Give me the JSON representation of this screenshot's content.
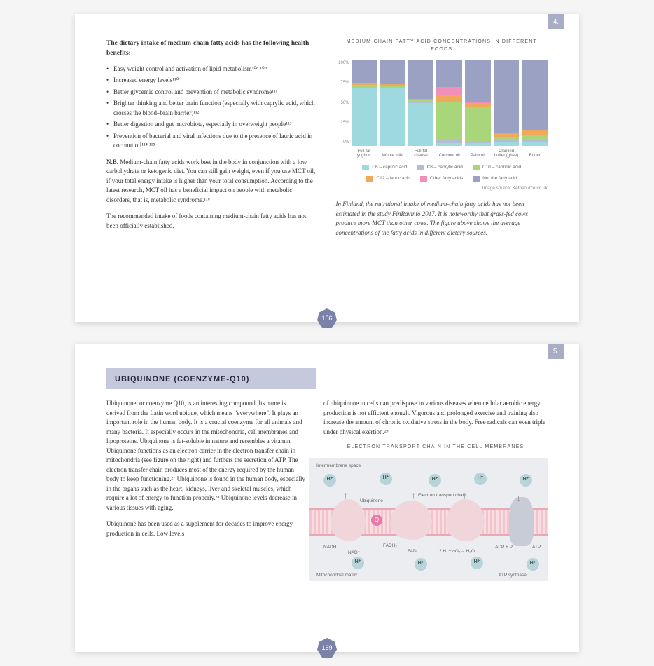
{
  "page1": {
    "tab": "4.",
    "pageNum": "156",
    "intro": "The dietary intake of medium-chain fatty acids has the following health benefits:",
    "bullets": [
      "Easy weight control and activation of lipid metabolism¹⁰⁸ ¹⁰⁹",
      "Increased energy levels¹¹⁰",
      "Better glycemic control and prevention of metabolic syndrome¹¹¹",
      "Brighter thinking and better brain function (especially with caprylic acid, which crosses the blood–brain barrier)¹¹²",
      "Better digestion and gut microbiota, especially in overweight people¹¹³",
      "Prevention of bacterial and viral infections due to the presence of lauric acid in coconut oil¹¹⁴ ¹¹⁵"
    ],
    "nbLabel": "N.B.",
    "nb": " Medium-chain fatty acids work best in the body in conjunction with a low carbohydrate or ketogenic diet. You can still gain weight, even if you use MCT oil, if your total energy intake is higher than your total consumption. According to the latest research, MCT oil has a beneficial impact on people with metabolic disorders, that is, metabolic syndrome.¹¹⁶",
    "rec": "The recommended intake of foods containing medium-chain fatty acids has not been officially established.",
    "chartTitle": "MEDIUM-CHAIN FATTY ACID CONCENTRATIONS IN DIFFERENT FOODS",
    "yTicks": [
      "100%",
      "75%",
      "50%",
      "25%",
      "0%"
    ],
    "categories": [
      "Full-fat yoghurt",
      "Whole milk",
      "Full-fat cheese",
      "Coconut oil",
      "Palm oil",
      "Clarified butter (ghee)",
      "Butter"
    ],
    "series": {
      "c6": {
        "label": "C6 – caproic acid",
        "color": "#9fd9e0",
        "values": [
          68,
          67,
          50,
          3,
          3,
          4,
          4
        ]
      },
      "c8": {
        "label": "C8 – caprylic acid",
        "color": "#b4bcd6",
        "values": [
          1,
          1,
          1,
          5,
          3,
          3,
          3
        ]
      },
      "c10": {
        "label": "C10 – caprinic acid",
        "color": "#a9d67a",
        "values": [
          2,
          2,
          2,
          43,
          40,
          4,
          5
        ]
      },
      "c12": {
        "label": "C12 – lauric acid",
        "color": "#f0a85a",
        "values": [
          2,
          2,
          2,
          8,
          4,
          4,
          6
        ]
      },
      "other": {
        "label": "Other fatty acids",
        "color": "#f08fb8",
        "values": [
          0,
          0,
          0,
          10,
          2,
          0,
          0
        ]
      },
      "not": {
        "label": "Not the fatty acid",
        "color": "#9aa1c2",
        "values": [
          27,
          28,
          45,
          31,
          48,
          85,
          82
        ]
      }
    },
    "seriesOrder": [
      "c6",
      "c8",
      "c10",
      "c12",
      "other",
      "not"
    ],
    "legendOrder": [
      "c6",
      "c8",
      "c10",
      "c12",
      "other",
      "not"
    ],
    "imgSource": "Image source: Ketosource.co.uk",
    "italicNote": "In Finland, the nutritional intake of medium-chain fatty acids has not been estimated in the study FinRavinto 2017. It is noteworthy that grass-fed cows produce more MCT than other cows. The figure above shows the average concentrations of the fatty acids in different dietary sources."
  },
  "page2": {
    "tab": "5.",
    "pageNum": "169",
    "headingBar": "UBIQUINONE (COENZYME-Q10)",
    "leftPara1": "Ubiquinone, or coenzyme Q10, is an interesting compound. Its name is derived from the Latin word ubique, which means \"everywhere\". It plays an important role in the human body. It is a crucial coenzyme for all animals and many bacteria. It especially occurs in the mitochondria, cell membranes and lipoproteins. Ubiquinone is fat-soluble in nature and resembles a vitamin. Ubiquinone functions as an electron carrier in the electron transfer chain in mitochondria (see figure on the right) and furthers the secretion of ATP. The electron transfer chain produces most of the energy required by the human body to keep functioning.²⁷ Ubiquinone is found in the human body, especially in the organs such as the heart, kidneys, liver and skeletal muscles, which require a lot of energy to function properly.²⁸ Ubiquinone levels decrease in various tissues with aging.",
    "leftPara2": "Ubiquinone has been used as a supplement for decades to improve energy production in cells. Low levels",
    "rightPara": "of ubiquinone in cells can predispose to various diseases when cellular aerobic energy production is not efficient enough. Vigorous and prolonged exercise and training also increase the amount of chronic oxidative stress in the body. Free radicals can even triple under physical exertion.²⁹",
    "diagramTitle": "ELECTRON TRANSPORT CHAIN IN THE CELL MEMBRANES",
    "diagram": {
      "bg": "#ecedf0",
      "membrane": "#f3c4cc",
      "membraneBorder": "#e8a8b5",
      "protein": "#f0d5db",
      "hIon": "#b8d4d8",
      "hIonText": "H⁺",
      "labels": {
        "intermembrane": "Intermembrane space",
        "ubiquinone": "Ubiquinone",
        "etc": "Electron transport chain",
        "mito": "Mitochondrial matrix",
        "atpSyn": "ATP synthase",
        "nadh": "NADH",
        "nad": "NAD⁺",
        "fadh": "FADH₂",
        "fad": "FAD",
        "water": "2 H⁺+½O₂→ H₂O",
        "adp": "ADP + P",
        "atp": "ATP",
        "q": "Q"
      }
    }
  }
}
